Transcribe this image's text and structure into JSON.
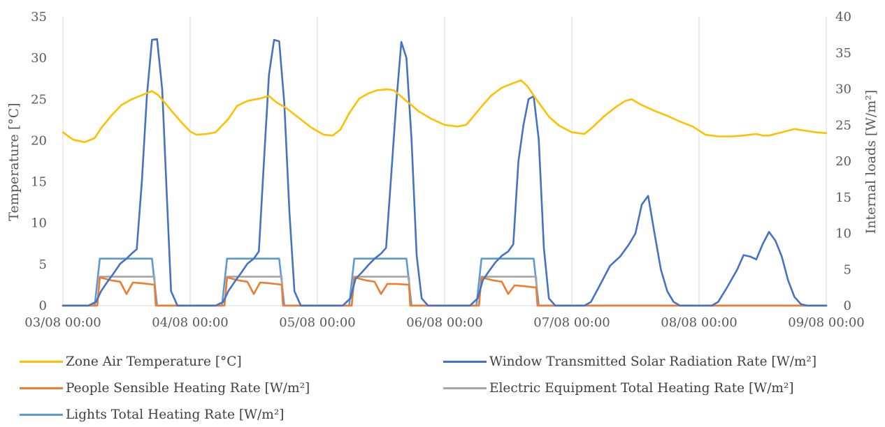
{
  "chart_data": {
    "type": "line",
    "xlabel": "",
    "ylabel": "Temperature [°C]",
    "y2label": "Internal loads [W/m²]",
    "ylim": [
      0,
      35
    ],
    "y2lim": [
      0,
      40
    ],
    "x_ticks": [
      "03/08 00:00",
      "04/08 00:00",
      "05/08 00:00",
      "06/08 00:00",
      "07/08 00:00",
      "08/08 00:00",
      "09/08 00:00"
    ],
    "y_ticks": [
      "0",
      "5",
      "10",
      "15",
      "20",
      "25",
      "30",
      "35"
    ],
    "y2_ticks": [
      "0",
      "5",
      "10",
      "15",
      "20",
      "25",
      "30",
      "35",
      "40"
    ],
    "x_unit": "day index from 03/08 00:00",
    "grid": "vertical",
    "legend_position": "bottom",
    "series": [
      {
        "name": "Zone Air Temperature [°C]",
        "axis": "left",
        "color": "#FFC000",
        "points": [
          [
            0,
            21.0
          ],
          [
            0.08,
            20.1
          ],
          [
            0.17,
            19.8
          ],
          [
            0.25,
            20.3
          ],
          [
            0.3,
            21.5
          ],
          [
            0.38,
            23.0
          ],
          [
            0.46,
            24.3
          ],
          [
            0.54,
            25.0
          ],
          [
            0.62,
            25.5
          ],
          [
            0.7,
            26.0
          ],
          [
            0.75,
            25.5
          ],
          [
            0.8,
            24.6
          ],
          [
            0.87,
            23.3
          ],
          [
            0.95,
            21.9
          ],
          [
            1.0,
            21.1
          ],
          [
            1.05,
            20.7
          ],
          [
            1.13,
            20.8
          ],
          [
            1.2,
            21.0
          ],
          [
            1.25,
            21.8
          ],
          [
            1.3,
            22.6
          ],
          [
            1.37,
            24.2
          ],
          [
            1.45,
            24.8
          ],
          [
            1.55,
            25.1
          ],
          [
            1.62,
            25.4
          ],
          [
            1.68,
            24.6
          ],
          [
            1.75,
            24.0
          ],
          [
            1.85,
            22.8
          ],
          [
            1.95,
            21.6
          ],
          [
            2.05,
            20.7
          ],
          [
            2.12,
            20.6
          ],
          [
            2.18,
            21.3
          ],
          [
            2.25,
            23.3
          ],
          [
            2.33,
            25.1
          ],
          [
            2.4,
            25.7
          ],
          [
            2.47,
            26.1
          ],
          [
            2.55,
            26.2
          ],
          [
            2.6,
            26.1
          ],
          [
            2.7,
            24.8
          ],
          [
            2.8,
            23.5
          ],
          [
            2.9,
            22.6
          ],
          [
            3.0,
            21.9
          ],
          [
            3.1,
            21.7
          ],
          [
            3.17,
            21.9
          ],
          [
            3.22,
            22.8
          ],
          [
            3.3,
            24.3
          ],
          [
            3.37,
            25.5
          ],
          [
            3.45,
            26.4
          ],
          [
            3.53,
            26.9
          ],
          [
            3.6,
            27.3
          ],
          [
            3.65,
            26.6
          ],
          [
            3.73,
            24.8
          ],
          [
            3.82,
            22.9
          ],
          [
            3.9,
            21.8
          ],
          [
            4.0,
            21.0
          ],
          [
            4.1,
            20.8
          ],
          [
            4.17,
            21.7
          ],
          [
            4.25,
            22.9
          ],
          [
            4.35,
            24.1
          ],
          [
            4.42,
            24.8
          ],
          [
            4.47,
            25.0
          ],
          [
            4.55,
            24.3
          ],
          [
            4.65,
            23.6
          ],
          [
            4.75,
            23.0
          ],
          [
            4.85,
            22.3
          ],
          [
            4.95,
            21.7
          ],
          [
            5.0,
            21.2
          ],
          [
            5.05,
            20.7
          ],
          [
            5.15,
            20.5
          ],
          [
            5.25,
            20.5
          ],
          [
            5.35,
            20.6
          ],
          [
            5.4,
            20.7
          ],
          [
            5.45,
            20.8
          ],
          [
            5.5,
            20.6
          ],
          [
            5.55,
            20.6
          ],
          [
            5.65,
            21.0
          ],
          [
            5.75,
            21.4
          ],
          [
            5.83,
            21.2
          ],
          [
            5.92,
            21.0
          ],
          [
            6.0,
            20.9
          ]
        ]
      },
      {
        "name": "Window Transmitted Solar Radiation Rate [W/m²]",
        "axis": "right",
        "color": "#4472C4",
        "points": [
          [
            0,
            0
          ],
          [
            0.2,
            0
          ],
          [
            0.26,
            0.5
          ],
          [
            0.3,
            2.0
          ],
          [
            0.35,
            3.3
          ],
          [
            0.4,
            4.5
          ],
          [
            0.45,
            5.8
          ],
          [
            0.5,
            6.5
          ],
          [
            0.54,
            7.2
          ],
          [
            0.58,
            7.8
          ],
          [
            0.62,
            17
          ],
          [
            0.66,
            29
          ],
          [
            0.7,
            36.8
          ],
          [
            0.74,
            36.9
          ],
          [
            0.78,
            30
          ],
          [
            0.82,
            14
          ],
          [
            0.85,
            2
          ],
          [
            0.9,
            0
          ],
          [
            1.0,
            0
          ],
          [
            1.2,
            0
          ],
          [
            1.26,
            0.5
          ],
          [
            1.3,
            2.0
          ],
          [
            1.35,
            3.3
          ],
          [
            1.4,
            4.5
          ],
          [
            1.45,
            5.8
          ],
          [
            1.5,
            6.5
          ],
          [
            1.54,
            7.5
          ],
          [
            1.58,
            20
          ],
          [
            1.62,
            32
          ],
          [
            1.66,
            36.8
          ],
          [
            1.7,
            36.6
          ],
          [
            1.74,
            28
          ],
          [
            1.78,
            13
          ],
          [
            1.82,
            2
          ],
          [
            1.87,
            0
          ],
          [
            2.0,
            0
          ],
          [
            2.2,
            0
          ],
          [
            2.26,
            1.0
          ],
          [
            2.3,
            3.7
          ],
          [
            2.35,
            4.6
          ],
          [
            2.4,
            5.6
          ],
          [
            2.45,
            6.5
          ],
          [
            2.5,
            7.2
          ],
          [
            2.54,
            8.0
          ],
          [
            2.58,
            18
          ],
          [
            2.62,
            28
          ],
          [
            2.66,
            36.5
          ],
          [
            2.7,
            34.3
          ],
          [
            2.74,
            23
          ],
          [
            2.78,
            7
          ],
          [
            2.82,
            1
          ],
          [
            2.87,
            0
          ],
          [
            3.0,
            0
          ],
          [
            3.2,
            0
          ],
          [
            3.26,
            1.0
          ],
          [
            3.3,
            3.5
          ],
          [
            3.35,
            4.8
          ],
          [
            3.4,
            6.0
          ],
          [
            3.45,
            6.9
          ],
          [
            3.5,
            7.5
          ],
          [
            3.54,
            8.5
          ],
          [
            3.58,
            20
          ],
          [
            3.62,
            25
          ],
          [
            3.66,
            28.6
          ],
          [
            3.7,
            29.0
          ],
          [
            3.74,
            23
          ],
          [
            3.78,
            8
          ],
          [
            3.82,
            1
          ],
          [
            3.87,
            0
          ],
          [
            4.0,
            0
          ],
          [
            4.1,
            0
          ],
          [
            4.15,
            0.5
          ],
          [
            4.22,
            2.8
          ],
          [
            4.3,
            5.5
          ],
          [
            4.38,
            6.8
          ],
          [
            4.45,
            8.5
          ],
          [
            4.5,
            10
          ],
          [
            4.55,
            14
          ],
          [
            4.6,
            15.2
          ],
          [
            4.65,
            10
          ],
          [
            4.7,
            5
          ],
          [
            4.75,
            2
          ],
          [
            4.8,
            0.5
          ],
          [
            4.85,
            0
          ],
          [
            5.0,
            0
          ],
          [
            5.1,
            0
          ],
          [
            5.15,
            0.5
          ],
          [
            5.22,
            2.5
          ],
          [
            5.3,
            5.0
          ],
          [
            5.35,
            7.0
          ],
          [
            5.4,
            6.8
          ],
          [
            5.45,
            6.4
          ],
          [
            5.5,
            8.5
          ],
          [
            5.55,
            10.2
          ],
          [
            5.6,
            9.0
          ],
          [
            5.65,
            6.8
          ],
          [
            5.7,
            3.5
          ],
          [
            5.75,
            1.2
          ],
          [
            5.8,
            0.2
          ],
          [
            5.85,
            0
          ],
          [
            6.0,
            0
          ]
        ]
      },
      {
        "name": "People Sensible Heating Rate [W/m²]",
        "axis": "right",
        "color": "#ED7D31",
        "points": [
          [
            0,
            0
          ],
          [
            0.27,
            0
          ],
          [
            0.29,
            3.9
          ],
          [
            0.38,
            3.5
          ],
          [
            0.45,
            3.3
          ],
          [
            0.5,
            1.6
          ],
          [
            0.55,
            3.2
          ],
          [
            0.62,
            3.1
          ],
          [
            0.72,
            2.9
          ],
          [
            0.73,
            0
          ],
          [
            1.0,
            0
          ],
          [
            1.27,
            0
          ],
          [
            1.29,
            3.9
          ],
          [
            1.38,
            3.5
          ],
          [
            1.45,
            3.3
          ],
          [
            1.5,
            1.6
          ],
          [
            1.55,
            3.2
          ],
          [
            1.62,
            3.1
          ],
          [
            1.72,
            2.9
          ],
          [
            1.73,
            0
          ],
          [
            2.0,
            0
          ],
          [
            2.27,
            0
          ],
          [
            2.29,
            3.9
          ],
          [
            2.38,
            3.5
          ],
          [
            2.45,
            3.3
          ],
          [
            2.5,
            1.6
          ],
          [
            2.55,
            3.0
          ],
          [
            2.62,
            3.0
          ],
          [
            2.72,
            2.9
          ],
          [
            2.73,
            0
          ],
          [
            3.0,
            0
          ],
          [
            3.27,
            0
          ],
          [
            3.29,
            3.9
          ],
          [
            3.38,
            3.5
          ],
          [
            3.45,
            3.3
          ],
          [
            3.5,
            1.6
          ],
          [
            3.55,
            2.8
          ],
          [
            3.62,
            2.7
          ],
          [
            3.72,
            2.5
          ],
          [
            3.73,
            0
          ],
          [
            6.0,
            0
          ]
        ]
      },
      {
        "name": "Electric Equipment Total Heating Rate [W/m²]",
        "axis": "right",
        "color": "#A5A5A5",
        "points": [
          [
            0,
            0
          ],
          [
            0.27,
            0
          ],
          [
            0.29,
            4.0
          ],
          [
            0.72,
            4.0
          ],
          [
            0.73,
            0
          ],
          [
            1.27,
            0
          ],
          [
            1.29,
            4.0
          ],
          [
            1.72,
            4.0
          ],
          [
            1.73,
            0
          ],
          [
            2.27,
            0
          ],
          [
            2.29,
            4.0
          ],
          [
            2.72,
            4.0
          ],
          [
            2.73,
            0
          ],
          [
            3.27,
            0
          ],
          [
            3.29,
            4.0
          ],
          [
            3.72,
            4.0
          ],
          [
            3.73,
            0
          ],
          [
            6.0,
            0
          ]
        ]
      },
      {
        "name": "Lights Total Heating Rate [W/m²]",
        "axis": "right",
        "color": "#5B9BD5",
        "points": [
          [
            0,
            0
          ],
          [
            0.25,
            0
          ],
          [
            0.29,
            6.5
          ],
          [
            0.7,
            6.5
          ],
          [
            0.74,
            0
          ],
          [
            1.25,
            0
          ],
          [
            1.29,
            6.5
          ],
          [
            1.7,
            6.5
          ],
          [
            1.74,
            0
          ],
          [
            2.25,
            0
          ],
          [
            2.29,
            6.5
          ],
          [
            2.7,
            6.5
          ],
          [
            2.74,
            0
          ],
          [
            3.25,
            0
          ],
          [
            3.29,
            6.5
          ],
          [
            3.7,
            6.5
          ],
          [
            3.74,
            0
          ],
          [
            6.0,
            0
          ]
        ]
      }
    ]
  }
}
